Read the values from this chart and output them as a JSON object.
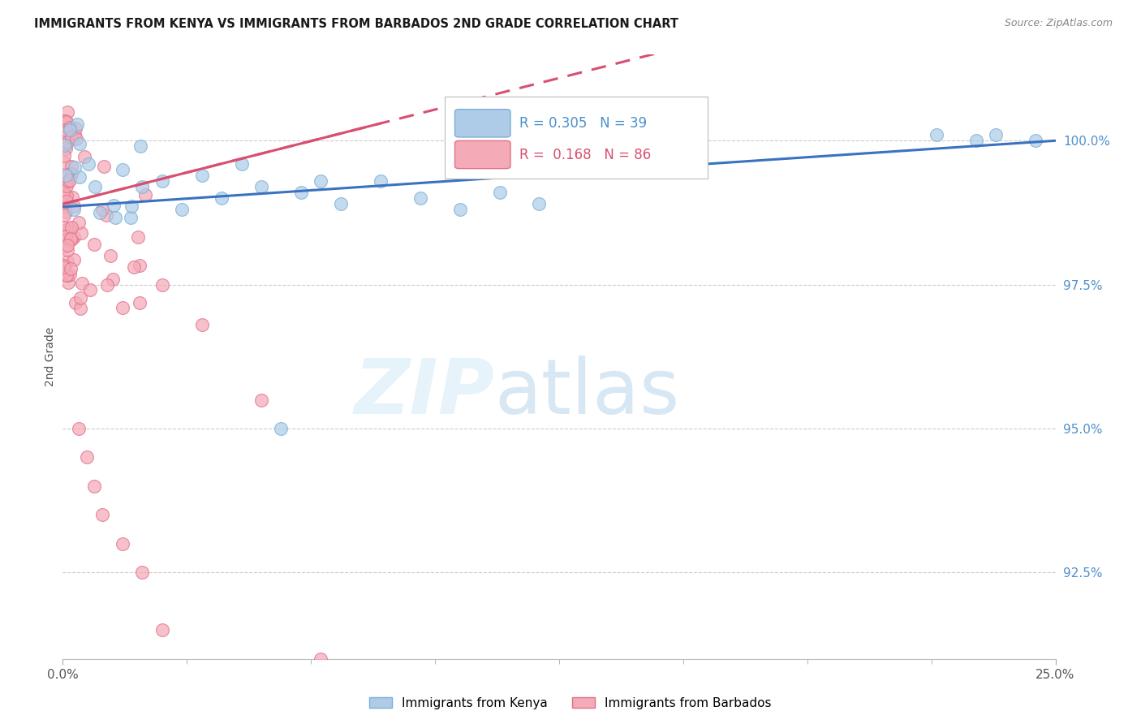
{
  "title": "IMMIGRANTS FROM KENYA VS IMMIGRANTS FROM BARBADOS 2ND GRADE CORRELATION CHART",
  "source": "Source: ZipAtlas.com",
  "ylabel": "2nd Grade",
  "xlim": [
    0.0,
    25.0
  ],
  "ylim": [
    91.0,
    101.5
  ],
  "ytick_vals": [
    92.5,
    95.0,
    97.5,
    100.0
  ],
  "ytick_labels": [
    "92.5%",
    "95.0%",
    "97.5%",
    "100.0%"
  ],
  "kenya_color": "#aecce8",
  "kenya_edge": "#7aafd4",
  "barbados_color": "#f5aab8",
  "barbados_edge": "#e0708a",
  "line_kenya_color": "#3a72c0",
  "line_barbados_color": "#d85070",
  "legend_kenya_text": "R = 0.305   N = 39",
  "legend_barbados_text": "R =  0.168   N = 86",
  "kenya_R": 0.305,
  "kenya_N": 39,
  "barbados_R": 0.168,
  "barbados_N": 86,
  "kenya_line_x0": 0.0,
  "kenya_line_y0": 98.85,
  "kenya_line_x1": 25.0,
  "kenya_line_y1": 100.0,
  "barbados_line_x0": 0.0,
  "barbados_line_y0": 98.9,
  "barbados_line_x1": 8.0,
  "barbados_line_y1": 100.3
}
